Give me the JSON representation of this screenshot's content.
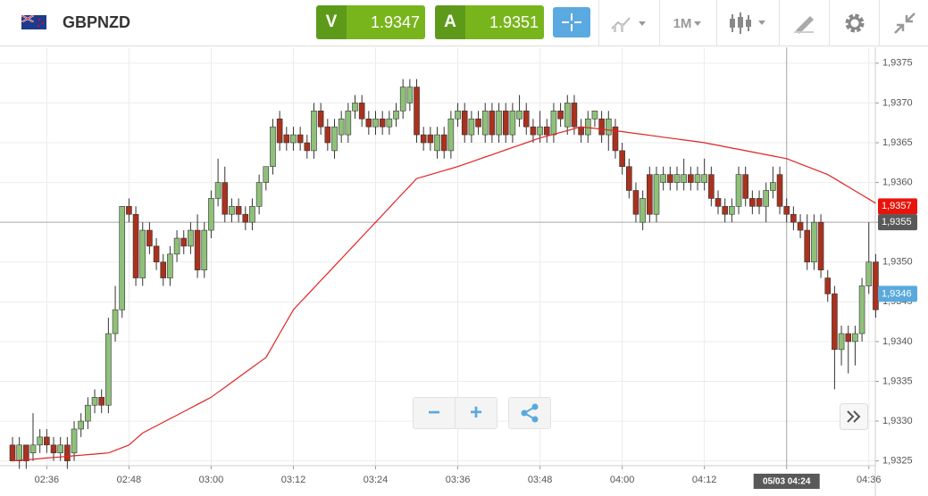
{
  "header": {
    "symbol": "GBPNZD",
    "bid_label": "V",
    "bid": "1.9347",
    "ask_label": "A",
    "ask": "1.9351",
    "timeframe": "1M"
  },
  "chart_data": {
    "type": "candlestick",
    "categories": [
      null,
      null,
      null,
      null,
      null,
      "02:36",
      null,
      null,
      null,
      null,
      null,
      null,
      null,
      null,
      null,
      null,
      null,
      "02:48",
      null,
      null,
      null,
      null,
      null,
      null,
      null,
      null,
      null,
      null,
      null,
      "03:00",
      null,
      null,
      null,
      null,
      null,
      null,
      null,
      null,
      null,
      null,
      null,
      "03:12",
      null,
      null,
      null,
      null,
      null,
      null,
      null,
      null,
      null,
      null,
      null,
      "03:24",
      null,
      null,
      null,
      null,
      null,
      null,
      null,
      null,
      null,
      null,
      null,
      "03:36",
      null,
      null,
      null,
      null,
      null,
      null,
      null,
      null,
      null,
      null,
      null,
      "03:48",
      null,
      null,
      null,
      null,
      null,
      null,
      null,
      null,
      null,
      null,
      null,
      "04:00",
      null,
      null,
      null,
      null,
      null,
      null,
      null,
      null,
      null,
      null,
      null,
      "04:12",
      null,
      null,
      null,
      null,
      null,
      null,
      null,
      null,
      null,
      null,
      null,
      "04:24",
      null,
      null,
      null,
      null,
      null,
      null,
      null,
      null,
      null,
      null,
      null,
      "04:36",
      null
    ],
    "ohlc": [
      [
        1.9327,
        1.9328,
        1.9325,
        1.9325
      ],
      [
        1.9325,
        1.9328,
        1.9324,
        1.9327
      ],
      [
        1.9327,
        1.9327,
        1.9324,
        1.9325
      ],
      [
        1.9326,
        1.9331,
        1.9325,
        1.9327
      ],
      [
        1.9327,
        1.9329,
        1.9326,
        1.9328
      ],
      [
        1.9328,
        1.9329,
        1.9326,
        1.9327
      ],
      [
        1.9327,
        1.9328,
        1.9325,
        1.9326
      ],
      [
        1.9326,
        1.9328,
        1.9325,
        1.9327
      ],
      [
        1.9327,
        1.9328,
        1.9324,
        1.9325
      ],
      [
        1.9326,
        1.933,
        1.9325,
        1.9329
      ],
      [
        1.9329,
        1.9331,
        1.9328,
        1.933
      ],
      [
        1.933,
        1.9333,
        1.9329,
        1.9332
      ],
      [
        1.9332,
        1.9334,
        1.9331,
        1.9333
      ],
      [
        1.9333,
        1.9334,
        1.9331,
        1.9332
      ],
      [
        1.9332,
        1.9343,
        1.9331,
        1.9341
      ],
      [
        1.9341,
        1.9347,
        1.934,
        1.9344
      ],
      [
        1.9344,
        1.9357,
        1.9343,
        1.9357
      ],
      [
        1.9357,
        1.9358,
        1.9355,
        1.9356
      ],
      [
        1.9356,
        1.9357,
        1.9347,
        1.9348
      ],
      [
        1.9348,
        1.9355,
        1.9347,
        1.9354
      ],
      [
        1.9354,
        1.9355,
        1.9351,
        1.9352
      ],
      [
        1.9352,
        1.9353,
        1.9349,
        1.935
      ],
      [
        1.935,
        1.9351,
        1.9347,
        1.9348
      ],
      [
        1.9348,
        1.9352,
        1.9347,
        1.9351
      ],
      [
        1.9351,
        1.9354,
        1.935,
        1.9353
      ],
      [
        1.9353,
        1.9354,
        1.9351,
        1.9352
      ],
      [
        1.9352,
        1.9355,
        1.9351,
        1.9354
      ],
      [
        1.9354,
        1.9356,
        1.9348,
        1.9349
      ],
      [
        1.9349,
        1.9355,
        1.9348,
        1.9354
      ],
      [
        1.9354,
        1.9359,
        1.9353,
        1.9358
      ],
      [
        1.9358,
        1.9363,
        1.9357,
        1.936
      ],
      [
        1.936,
        1.9362,
        1.9355,
        1.9356
      ],
      [
        1.9356,
        1.9358,
        1.9355,
        1.9357
      ],
      [
        1.9357,
        1.9358,
        1.9355,
        1.9356
      ],
      [
        1.9356,
        1.9357,
        1.9354,
        1.9355
      ],
      [
        1.9355,
        1.9358,
        1.9354,
        1.9357
      ],
      [
        1.9357,
        1.9361,
        1.9356,
        1.936
      ],
      [
        1.936,
        1.9362,
        1.9359,
        1.9362
      ],
      [
        1.9362,
        1.9368,
        1.9361,
        1.9367
      ],
      [
        1.9368,
        1.9369,
        1.9364,
        1.9365
      ],
      [
        1.9366,
        1.9367,
        1.9364,
        1.9365
      ],
      [
        1.9365,
        1.9367,
        1.9364,
        1.9366
      ],
      [
        1.9366,
        1.9367,
        1.9364,
        1.9365
      ],
      [
        1.9365,
        1.9366,
        1.9363,
        1.9364
      ],
      [
        1.9364,
        1.937,
        1.9363,
        1.9369
      ],
      [
        1.9369,
        1.937,
        1.9366,
        1.9367
      ],
      [
        1.9367,
        1.9368,
        1.9364,
        1.9365
      ],
      [
        1.9364,
        1.9368,
        1.9363,
        1.9367
      ],
      [
        1.9366,
        1.9369,
        1.9365,
        1.9368
      ],
      [
        1.9366,
        1.937,
        1.9365,
        1.9369
      ],
      [
        1.9369,
        1.9371,
        1.9368,
        1.937
      ],
      [
        1.937,
        1.9371,
        1.9367,
        1.9368
      ],
      [
        1.9368,
        1.9369,
        1.9366,
        1.9367
      ],
      [
        1.9367,
        1.9369,
        1.9366,
        1.9368
      ],
      [
        1.9368,
        1.9369,
        1.9366,
        1.9367
      ],
      [
        1.9367,
        1.9369,
        1.9366,
        1.9368
      ],
      [
        1.9368,
        1.937,
        1.9367,
        1.9369
      ],
      [
        1.9369,
        1.9373,
        1.9368,
        1.9372
      ],
      [
        1.937,
        1.9373,
        1.9369,
        1.9372
      ],
      [
        1.9372,
        1.9373,
        1.9365,
        1.9366
      ],
      [
        1.9366,
        1.9367,
        1.9364,
        1.9365
      ],
      [
        1.9366,
        1.9367,
        1.9364,
        1.9365
      ],
      [
        1.9364,
        1.9367,
        1.9363,
        1.9366
      ],
      [
        1.9366,
        1.9367,
        1.9363,
        1.9364
      ],
      [
        1.9364,
        1.9369,
        1.9363,
        1.9368
      ],
      [
        1.9368,
        1.937,
        1.9367,
        1.9369
      ],
      [
        1.9369,
        1.937,
        1.9365,
        1.9366
      ],
      [
        1.9366,
        1.9369,
        1.9365,
        1.9368
      ],
      [
        1.9368,
        1.9369,
        1.9366,
        1.9367
      ],
      [
        1.9366,
        1.937,
        1.9365,
        1.9369
      ],
      [
        1.9369,
        1.937,
        1.9365,
        1.9366
      ],
      [
        1.9366,
        1.937,
        1.9365,
        1.9369
      ],
      [
        1.9369,
        1.937,
        1.9365,
        1.9366
      ],
      [
        1.9366,
        1.937,
        1.9365,
        1.9369
      ],
      [
        1.9368,
        1.9371,
        1.9367,
        1.9369
      ],
      [
        1.9369,
        1.937,
        1.9366,
        1.9367
      ],
      [
        1.9367,
        1.9368,
        1.9365,
        1.9366
      ],
      [
        1.9366,
        1.9369,
        1.9365,
        1.9367
      ],
      [
        1.9367,
        1.9368,
        1.9365,
        1.9366
      ],
      [
        1.9366,
        1.937,
        1.9365,
        1.9369
      ],
      [
        1.9369,
        1.937,
        1.9367,
        1.9368
      ],
      [
        1.9367,
        1.9371,
        1.9366,
        1.937
      ],
      [
        1.937,
        1.9371,
        1.9366,
        1.9367
      ],
      [
        1.9367,
        1.9368,
        1.9365,
        1.9366
      ],
      [
        1.9366,
        1.9369,
        1.9365,
        1.9368
      ],
      [
        1.9368,
        1.9369,
        1.9367,
        1.9369
      ],
      [
        1.9368,
        1.9369,
        1.9365,
        1.9366
      ],
      [
        1.9366,
        1.9369,
        1.9364,
        1.9368
      ],
      [
        1.9367,
        1.9368,
        1.9363,
        1.9364
      ],
      [
        1.9364,
        1.9365,
        1.9361,
        1.9362
      ],
      [
        1.9362,
        1.9363,
        1.9358,
        1.9359
      ],
      [
        1.9359,
        1.936,
        1.9355,
        1.9356
      ],
      [
        1.9355,
        1.9359,
        1.9354,
        1.9358
      ],
      [
        1.9361,
        1.9362,
        1.9355,
        1.9356
      ],
      [
        1.9356,
        1.9362,
        1.9355,
        1.9361
      ],
      [
        1.936,
        1.9362,
        1.9359,
        1.9361
      ],
      [
        1.9361,
        1.9362,
        1.9359,
        1.936
      ],
      [
        1.936,
        1.9362,
        1.9359,
        1.9361
      ],
      [
        1.936,
        1.9363,
        1.9359,
        1.9361
      ],
      [
        1.9361,
        1.9362,
        1.9359,
        1.936
      ],
      [
        1.936,
        1.9362,
        1.9359,
        1.9361
      ],
      [
        1.936,
        1.9363,
        1.9359,
        1.9361
      ],
      [
        1.9361,
        1.9362,
        1.9357,
        1.9358
      ],
      [
        1.9358,
        1.9359,
        1.9356,
        1.9357
      ],
      [
        1.9357,
        1.9358,
        1.9355,
        1.9356
      ],
      [
        1.9356,
        1.9358,
        1.9355,
        1.9357
      ],
      [
        1.9357,
        1.9362,
        1.9356,
        1.9361
      ],
      [
        1.9361,
        1.9362,
        1.9357,
        1.9358
      ],
      [
        1.9358,
        1.9359,
        1.9356,
        1.9357
      ],
      [
        1.9358,
        1.9359,
        1.9356,
        1.9357
      ],
      [
        1.9357,
        1.936,
        1.9355,
        1.9359
      ],
      [
        1.9359,
        1.9362,
        1.9358,
        1.936
      ],
      [
        1.9361,
        1.9362,
        1.9356,
        1.9357
      ],
      [
        1.9357,
        1.9358,
        1.9355,
        1.9356
      ],
      [
        1.9356,
        1.9357,
        1.9354,
        1.9355
      ],
      [
        1.9355,
        1.9356,
        1.9353,
        1.9354
      ],
      [
        1.9354,
        1.9356,
        1.9349,
        1.935
      ],
      [
        1.935,
        1.9356,
        1.9349,
        1.9355
      ],
      [
        1.9355,
        1.9356,
        1.9348,
        1.9349
      ],
      [
        1.9348,
        1.9349,
        1.9345,
        1.9346
      ],
      [
        1.9346,
        1.9347,
        1.9334,
        1.9339
      ],
      [
        1.9339,
        1.9342,
        1.9337,
        1.9341
      ],
      [
        1.9341,
        1.9342,
        1.9336,
        1.934
      ],
      [
        1.934,
        1.9342,
        1.9337,
        1.9341
      ],
      [
        1.9341,
        1.9348,
        1.934,
        1.9347
      ],
      [
        1.9347,
        1.9355,
        1.9346,
        1.935
      ],
      [
        1.935,
        1.9351,
        1.9343,
        1.9344
      ]
    ],
    "up_color": "#8fc07a",
    "down_color": "#a8321e",
    "moving_average": {
      "color": "#e02424",
      "values": [
        1.9325,
        1.932507,
        1.932514,
        1.932521,
        1.932529,
        1.932536,
        1.932543,
        1.93255,
        1.932557,
        1.932564,
        1.932571,
        1.932579,
        1.932586,
        1.932593,
        1.9326,
        1.932633,
        1.932667,
        1.9327,
        1.932775,
        1.93285,
        1.932895,
        1.93294,
        1.932985,
        1.93303,
        1.933075,
        1.93312,
        1.933165,
        1.93321,
        1.933255,
        1.9333,
        1.933363,
        1.933425,
        1.933488,
        1.93355,
        1.933613,
        1.933675,
        1.933738,
        1.9338,
        1.93395,
        1.9341,
        1.93425,
        1.9344,
        1.934492,
        1.934583,
        1.934675,
        1.934767,
        1.934858,
        1.93495,
        1.935042,
        1.935133,
        1.935225,
        1.935317,
        1.935408,
        1.9355,
        1.935592,
        1.935683,
        1.935775,
        1.935867,
        1.935958,
        1.93605,
        1.936075,
        1.9361,
        1.936125,
        1.93615,
        1.936175,
        1.9362,
        1.93623,
        1.93626,
        1.93629,
        1.93632,
        1.93635,
        1.93638,
        1.93641,
        1.93644,
        1.93647,
        1.9365,
        1.93653,
        1.93656,
        1.936583,
        1.936607,
        1.93663,
        1.936653,
        1.936677,
        1.9367,
        1.93669,
        1.93668,
        1.93667,
        1.93666,
        1.93665,
        1.93664,
        1.936628,
        1.936617,
        1.936605,
        1.936593,
        1.936582,
        1.93657,
        1.936558,
        1.936547,
        1.936535,
        1.936523,
        1.936512,
        1.9365,
        1.936483,
        1.936467,
        1.93645,
        1.936433,
        1.936417,
        1.9364,
        1.936383,
        1.936367,
        1.93635,
        1.936333,
        1.936317,
        1.9363,
        1.936267,
        1.936233,
        1.9362,
        1.936167,
        1.936133,
        1.9361,
        1.936049,
        1.935997,
        1.935946,
        1.935894,
        1.935843,
        1.935791,
        1.93574
      ]
    },
    "ylim": [
      1.93244,
      1.9377
    ],
    "yticks": [
      {
        "value": 1.9325,
        "label": "1,9325"
      },
      {
        "value": 1.933,
        "label": "1,9330"
      },
      {
        "value": 1.9335,
        "label": "1,9335"
      },
      {
        "value": 1.934,
        "label": "1,9340"
      },
      {
        "value": 1.9345,
        "label": "1,9345"
      },
      {
        "value": 1.935,
        "label": "1,9350"
      },
      {
        "value": 1.9355,
        "label": "1,9355"
      },
      {
        "value": 1.936,
        "label": "1,9360"
      },
      {
        "value": 1.9365,
        "label": "1,9365"
      },
      {
        "value": 1.937,
        "label": "1,9370"
      },
      {
        "value": 1.9375,
        "label": "1,9375"
      }
    ],
    "grid": true,
    "markers": [
      {
        "value": 1.9357,
        "label": "1,9357",
        "color": "#e8140c"
      },
      {
        "value": 1.9346,
        "label": "1,9346",
        "color": "#5aa9dd"
      }
    ],
    "crosshair": {
      "label": "05/03 04:24",
      "y": {
        "value": 1.9355,
        "label": "1,9355"
      },
      "color": "#595959"
    }
  }
}
